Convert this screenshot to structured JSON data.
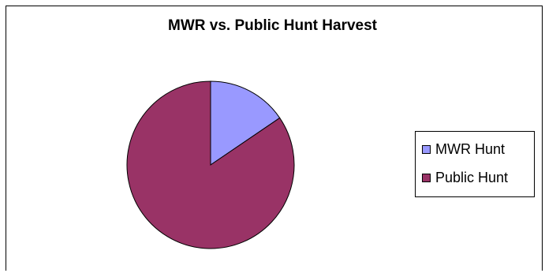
{
  "chart_data": {
    "type": "pie",
    "title": "MWR vs. Public Hunt Harvest",
    "categories": [
      "MWR Hunt",
      "Public Hunt"
    ],
    "values": [
      15.5,
      84.5
    ],
    "colors": [
      "#9999ff",
      "#993366"
    ],
    "legend": "right",
    "start_angle_deg": 0,
    "direction": "clockwise"
  }
}
